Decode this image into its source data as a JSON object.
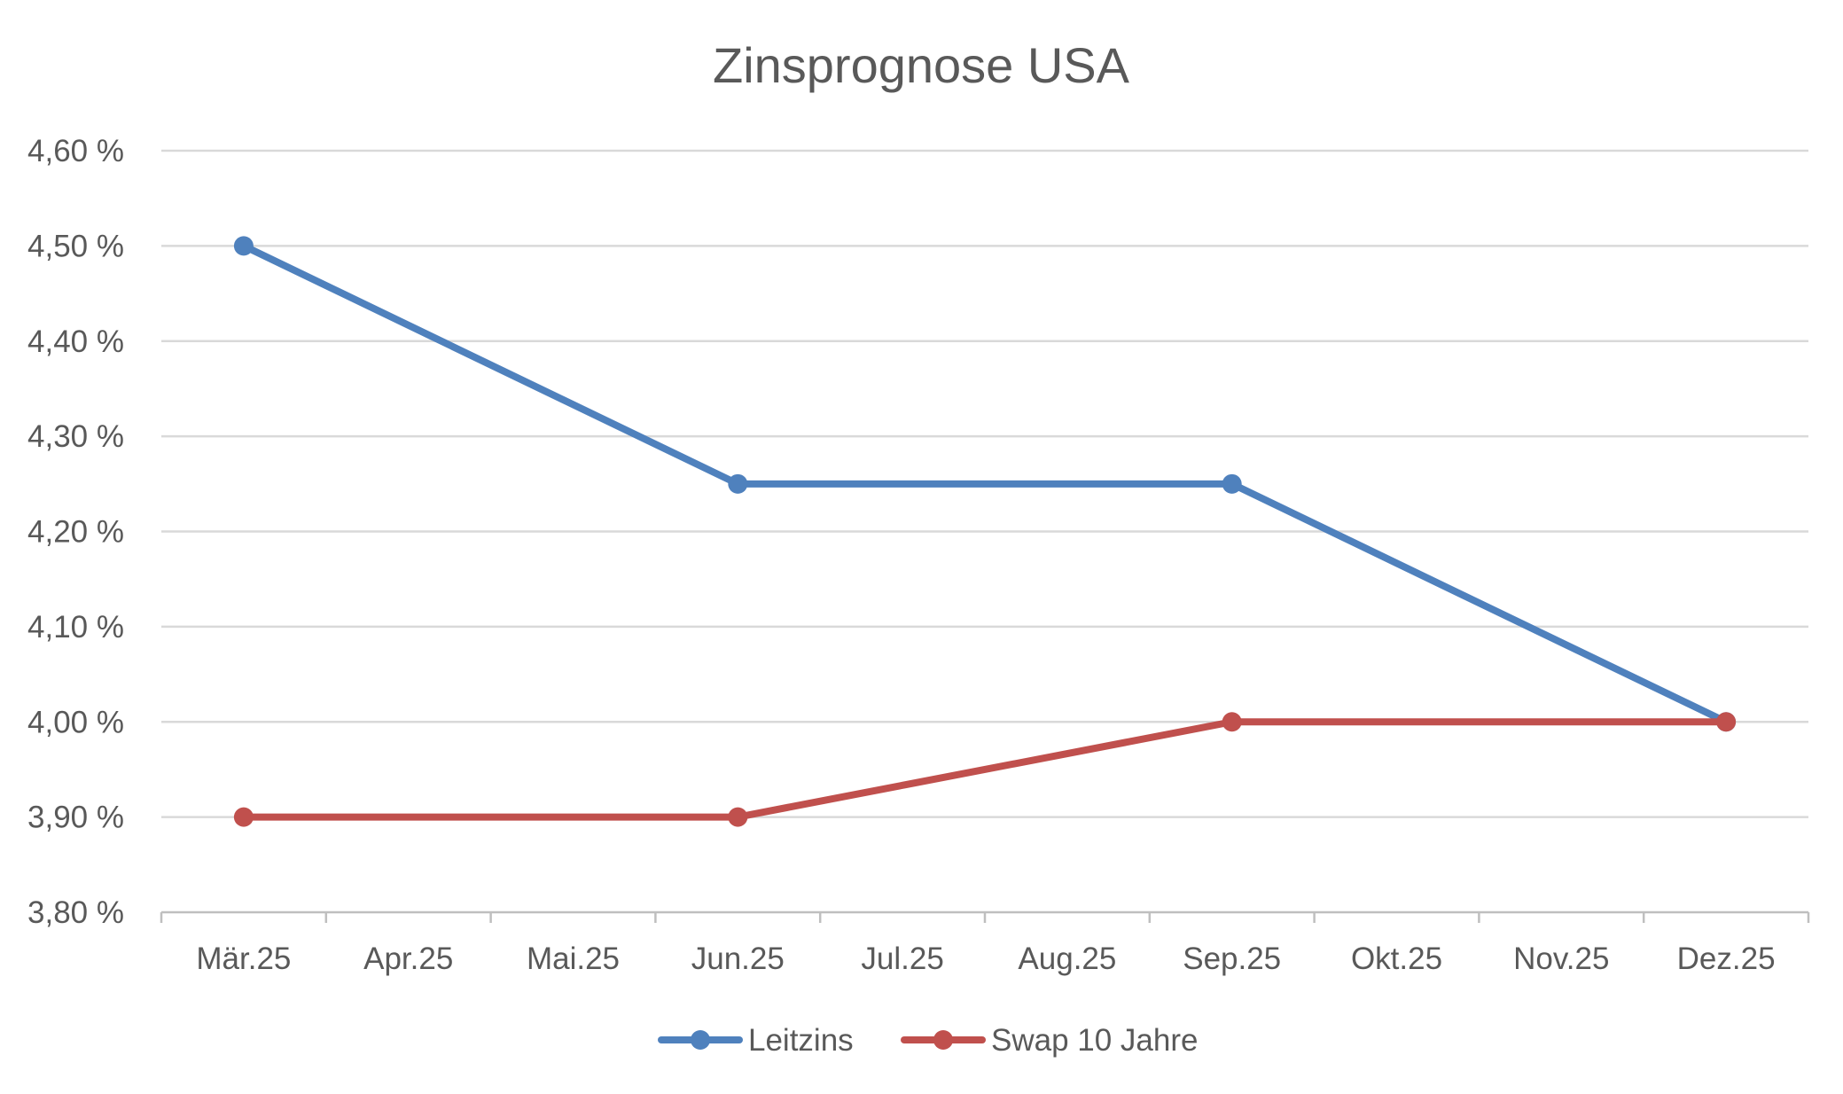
{
  "chart_data": {
    "type": "line",
    "title": "Zinsprognose USA",
    "xlabel": "",
    "ylabel": "",
    "categories": [
      "Mär.25",
      "Apr.25",
      "Mai.25",
      "Jun.25",
      "Jul.25",
      "Aug.25",
      "Sep.25",
      "Okt.25",
      "Nov.25",
      "Dez.25"
    ],
    "ylim": [
      3.8,
      4.6
    ],
    "yticks": [
      3.8,
      3.9,
      4.0,
      4.1,
      4.2,
      4.3,
      4.4,
      4.5,
      4.6
    ],
    "ytick_labels": [
      "3,80 %",
      "3,90 %",
      "4,00 %",
      "4,10 %",
      "4,20 %",
      "4,30 %",
      "4,40 %",
      "4,50 %",
      "4,60 %"
    ],
    "grid": true,
    "legend_position": "bottom",
    "series": [
      {
        "name": "Leitzins",
        "color": "#4f81bd",
        "points": [
          {
            "category": "Mär.25",
            "value": 4.5
          },
          {
            "category": "Jun.25",
            "value": 4.25
          },
          {
            "category": "Sep.25",
            "value": 4.25
          },
          {
            "category": "Dez.25",
            "value": 4.0
          }
        ]
      },
      {
        "name": "Swap 10 Jahre",
        "color": "#c0504d",
        "points": [
          {
            "category": "Mär.25",
            "value": 3.9
          },
          {
            "category": "Jun.25",
            "value": 3.9
          },
          {
            "category": "Sep.25",
            "value": 4.0
          },
          {
            "category": "Dez.25",
            "value": 4.0
          }
        ]
      }
    ]
  }
}
